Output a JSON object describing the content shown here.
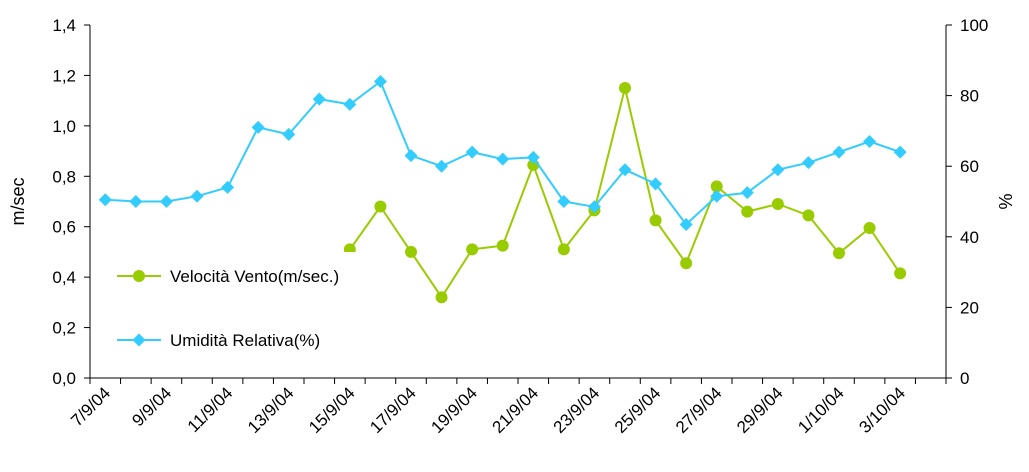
{
  "chart_data": {
    "type": "line",
    "categories": [
      "7/9/04",
      "8/9/04",
      "9/9/04",
      "10/9/04",
      "11/9/04",
      "12/9/04",
      "13/9/04",
      "14/9/04",
      "15/9/04",
      "16/9/04",
      "17/9/04",
      "18/9/04",
      "19/9/04",
      "20/9/04",
      "21/9/04",
      "22/9/04",
      "23/9/04",
      "24/9/04",
      "25/9/04",
      "26/9/04",
      "27/9/04",
      "28/9/04",
      "29/9/04",
      "30/9/04",
      "1/10/04",
      "2/10/04",
      "3/10/04",
      "4/10/04"
    ],
    "x_tick_labels": [
      "7/9/04",
      "9/9/04",
      "11/9/04",
      "13/9/04",
      "15/9/04",
      "17/9/04",
      "19/9/04",
      "21/9/04",
      "23/9/04",
      "25/9/04",
      "27/9/04",
      "29/9/04",
      "1/10/04",
      "3/10/04"
    ],
    "series": [
      {
        "name": "Velocità Vento(m/sec.)",
        "axis": "left",
        "color": "#99CC00",
        "marker": "circle",
        "values": [
          null,
          null,
          null,
          null,
          null,
          null,
          null,
          null,
          0.51,
          0.68,
          0.5,
          0.32,
          0.51,
          0.525,
          0.845,
          0.51,
          0.665,
          1.15,
          0.625,
          0.455,
          0.76,
          0.66,
          0.69,
          0.645,
          0.495,
          0.595,
          0.415,
          null
        ]
      },
      {
        "name": "Umidità Relativa(%)",
        "axis": "right",
        "color": "#33CCFF",
        "marker": "diamond",
        "values": [
          50.5,
          50,
          50,
          51.5,
          54,
          71,
          69,
          79,
          77.5,
          84,
          63,
          60,
          64,
          62,
          62.5,
          50,
          48.5,
          59,
          55,
          43.5,
          51.5,
          52.5,
          59,
          61,
          64,
          67,
          64,
          null
        ]
      }
    ],
    "y_left": {
      "label": "m/sec",
      "lim": [
        0,
        1.4
      ],
      "ticks": [
        "0,0",
        "0,2",
        "0,4",
        "0,6",
        "0,8",
        "1,0",
        "1,2",
        "1,4"
      ]
    },
    "y_right": {
      "label": "%",
      "lim": [
        0,
        100
      ],
      "ticks": [
        "0",
        "20",
        "40",
        "60",
        "80",
        "100"
      ]
    },
    "grid": false,
    "legend": {
      "position": "inside-left",
      "entries": [
        "Velocità Vento(m/sec.)",
        "Umidità Relativa(%)"
      ]
    }
  }
}
